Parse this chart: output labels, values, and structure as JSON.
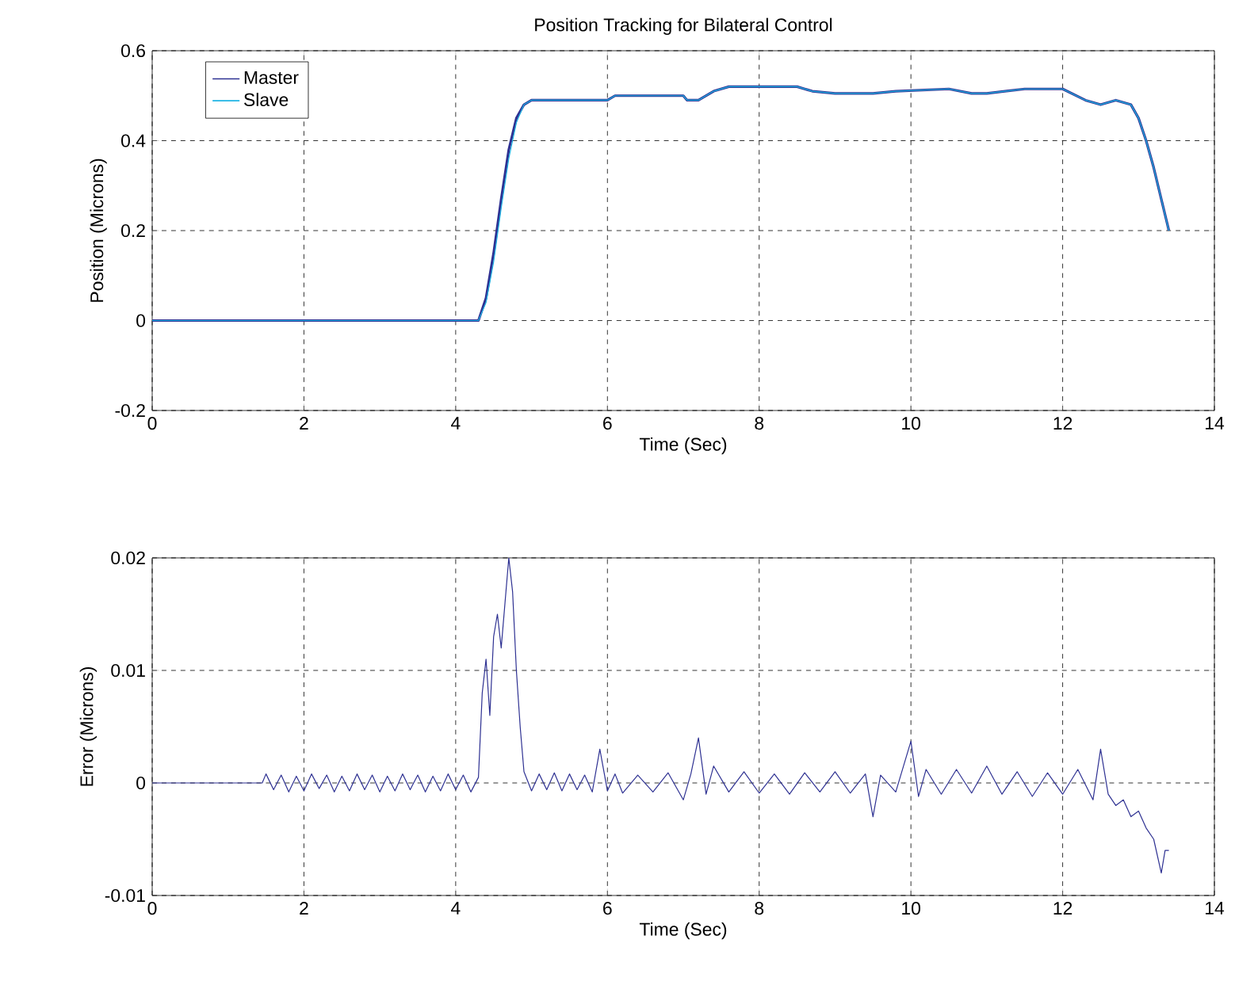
{
  "chart_data": [
    {
      "type": "line",
      "title": "Position Tracking for Bilateral Control",
      "xlabel": "Time (Sec)",
      "ylabel": "Position (Microns)",
      "x": [
        0,
        4.3,
        4.4,
        4.5,
        4.6,
        4.7,
        4.8,
        4.9,
        5.0,
        6.0,
        6.1,
        7.0,
        7.05,
        7.2,
        7.4,
        7.6,
        8.5,
        8.7,
        9.0,
        9.5,
        9.8,
        10.5,
        10.8,
        11.0,
        11.5,
        12.0,
        12.3,
        12.5,
        12.7,
        12.9,
        13.0,
        13.1,
        13.2,
        13.3,
        13.4
      ],
      "series": [
        {
          "name": "Master",
          "color": "#2e3192",
          "values": [
            0,
            0,
            0.05,
            0.15,
            0.27,
            0.38,
            0.45,
            0.48,
            0.49,
            0.49,
            0.5,
            0.5,
            0.49,
            0.49,
            0.51,
            0.52,
            0.52,
            0.51,
            0.505,
            0.505,
            0.51,
            0.515,
            0.505,
            0.505,
            0.515,
            0.515,
            0.49,
            0.48,
            0.49,
            0.48,
            0.45,
            0.4,
            0.34,
            0.27,
            0.2
          ]
        },
        {
          "name": "Slave",
          "color": "#1fb4e4",
          "values": [
            0,
            0,
            0.04,
            0.13,
            0.25,
            0.36,
            0.44,
            0.48,
            0.49,
            0.49,
            0.5,
            0.5,
            0.49,
            0.49,
            0.51,
            0.52,
            0.52,
            0.51,
            0.505,
            0.505,
            0.51,
            0.515,
            0.505,
            0.505,
            0.515,
            0.515,
            0.49,
            0.48,
            0.49,
            0.48,
            0.45,
            0.4,
            0.34,
            0.27,
            0.2
          ]
        }
      ],
      "xlim": [
        0,
        14
      ],
      "ylim": [
        -0.2,
        0.6
      ],
      "xticks": [
        0,
        2,
        4,
        6,
        8,
        10,
        12,
        14
      ],
      "yticks": [
        -0.2,
        0,
        0.2,
        0.4,
        0.6
      ],
      "grid": true,
      "legend": "top left"
    },
    {
      "type": "line",
      "xlabel": "Time (Sec)",
      "ylabel": "Error (Microns)",
      "x": [
        0,
        1.45,
        1.5,
        1.6,
        1.7,
        1.8,
        1.9,
        2.0,
        2.1,
        2.2,
        2.3,
        2.4,
        2.5,
        2.6,
        2.7,
        2.8,
        2.9,
        3.0,
        3.1,
        3.2,
        3.3,
        3.4,
        3.5,
        3.6,
        3.7,
        3.8,
        3.9,
        4.0,
        4.1,
        4.2,
        4.3,
        4.35,
        4.4,
        4.45,
        4.5,
        4.55,
        4.6,
        4.65,
        4.7,
        4.75,
        4.8,
        4.85,
        4.9,
        5.0,
        5.1,
        5.2,
        5.3,
        5.4,
        5.5,
        5.6,
        5.7,
        5.8,
        5.9,
        6.0,
        6.1,
        6.2,
        6.4,
        6.6,
        6.8,
        7.0,
        7.1,
        7.2,
        7.3,
        7.4,
        7.6,
        7.8,
        8.0,
        8.2,
        8.4,
        8.6,
        8.8,
        9.0,
        9.2,
        9.4,
        9.5,
        9.6,
        9.8,
        10.0,
        10.1,
        10.2,
        10.4,
        10.6,
        10.8,
        11.0,
        11.2,
        11.4,
        11.6,
        11.8,
        12.0,
        12.2,
        12.4,
        12.5,
        12.6,
        12.7,
        12.8,
        12.9,
        13.0,
        13.1,
        13.2,
        13.3,
        13.35,
        13.4
      ],
      "values": [
        0,
        0,
        0.0008,
        -0.0006,
        0.0007,
        -0.0008,
        0.0006,
        -0.0007,
        0.0008,
        -0.0005,
        0.0007,
        -0.0008,
        0.0006,
        -0.0007,
        0.0008,
        -0.0006,
        0.0007,
        -0.0008,
        0.0006,
        -0.0007,
        0.0008,
        -0.0006,
        0.0007,
        -0.0008,
        0.0006,
        -0.0007,
        0.0008,
        -0.0006,
        0.0007,
        -0.0008,
        0.0005,
        0.008,
        0.011,
        0.006,
        0.013,
        0.015,
        0.012,
        0.016,
        0.02,
        0.017,
        0.01,
        0.005,
        0.001,
        -0.0007,
        0.0008,
        -0.0006,
        0.0009,
        -0.0007,
        0.0008,
        -0.0006,
        0.0007,
        -0.0008,
        0.003,
        -0.0007,
        0.0008,
        -0.0009,
        0.0007,
        -0.0008,
        0.0009,
        -0.0015,
        0.0008,
        0.004,
        -0.001,
        0.0015,
        -0.0008,
        0.001,
        -0.0009,
        0.0008,
        -0.001,
        0.0009,
        -0.0008,
        0.001,
        -0.0009,
        0.0008,
        -0.003,
        0.0007,
        -0.0008,
        0.0037,
        -0.0012,
        0.0012,
        -0.001,
        0.0012,
        -0.0009,
        0.0015,
        -0.001,
        0.001,
        -0.0012,
        0.0009,
        -0.001,
        0.0012,
        -0.0015,
        0.003,
        -0.001,
        -0.002,
        -0.0015,
        -0.003,
        -0.0025,
        -0.004,
        -0.005,
        -0.008,
        -0.006,
        -0.006
      ],
      "color": "#2e3192",
      "xlim": [
        0,
        14
      ],
      "ylim": [
        -0.01,
        0.02
      ],
      "xticks": [
        0,
        2,
        4,
        6,
        8,
        10,
        12,
        14
      ],
      "yticks": [
        -0.01,
        0,
        0.01,
        0.02
      ],
      "grid": true
    }
  ]
}
